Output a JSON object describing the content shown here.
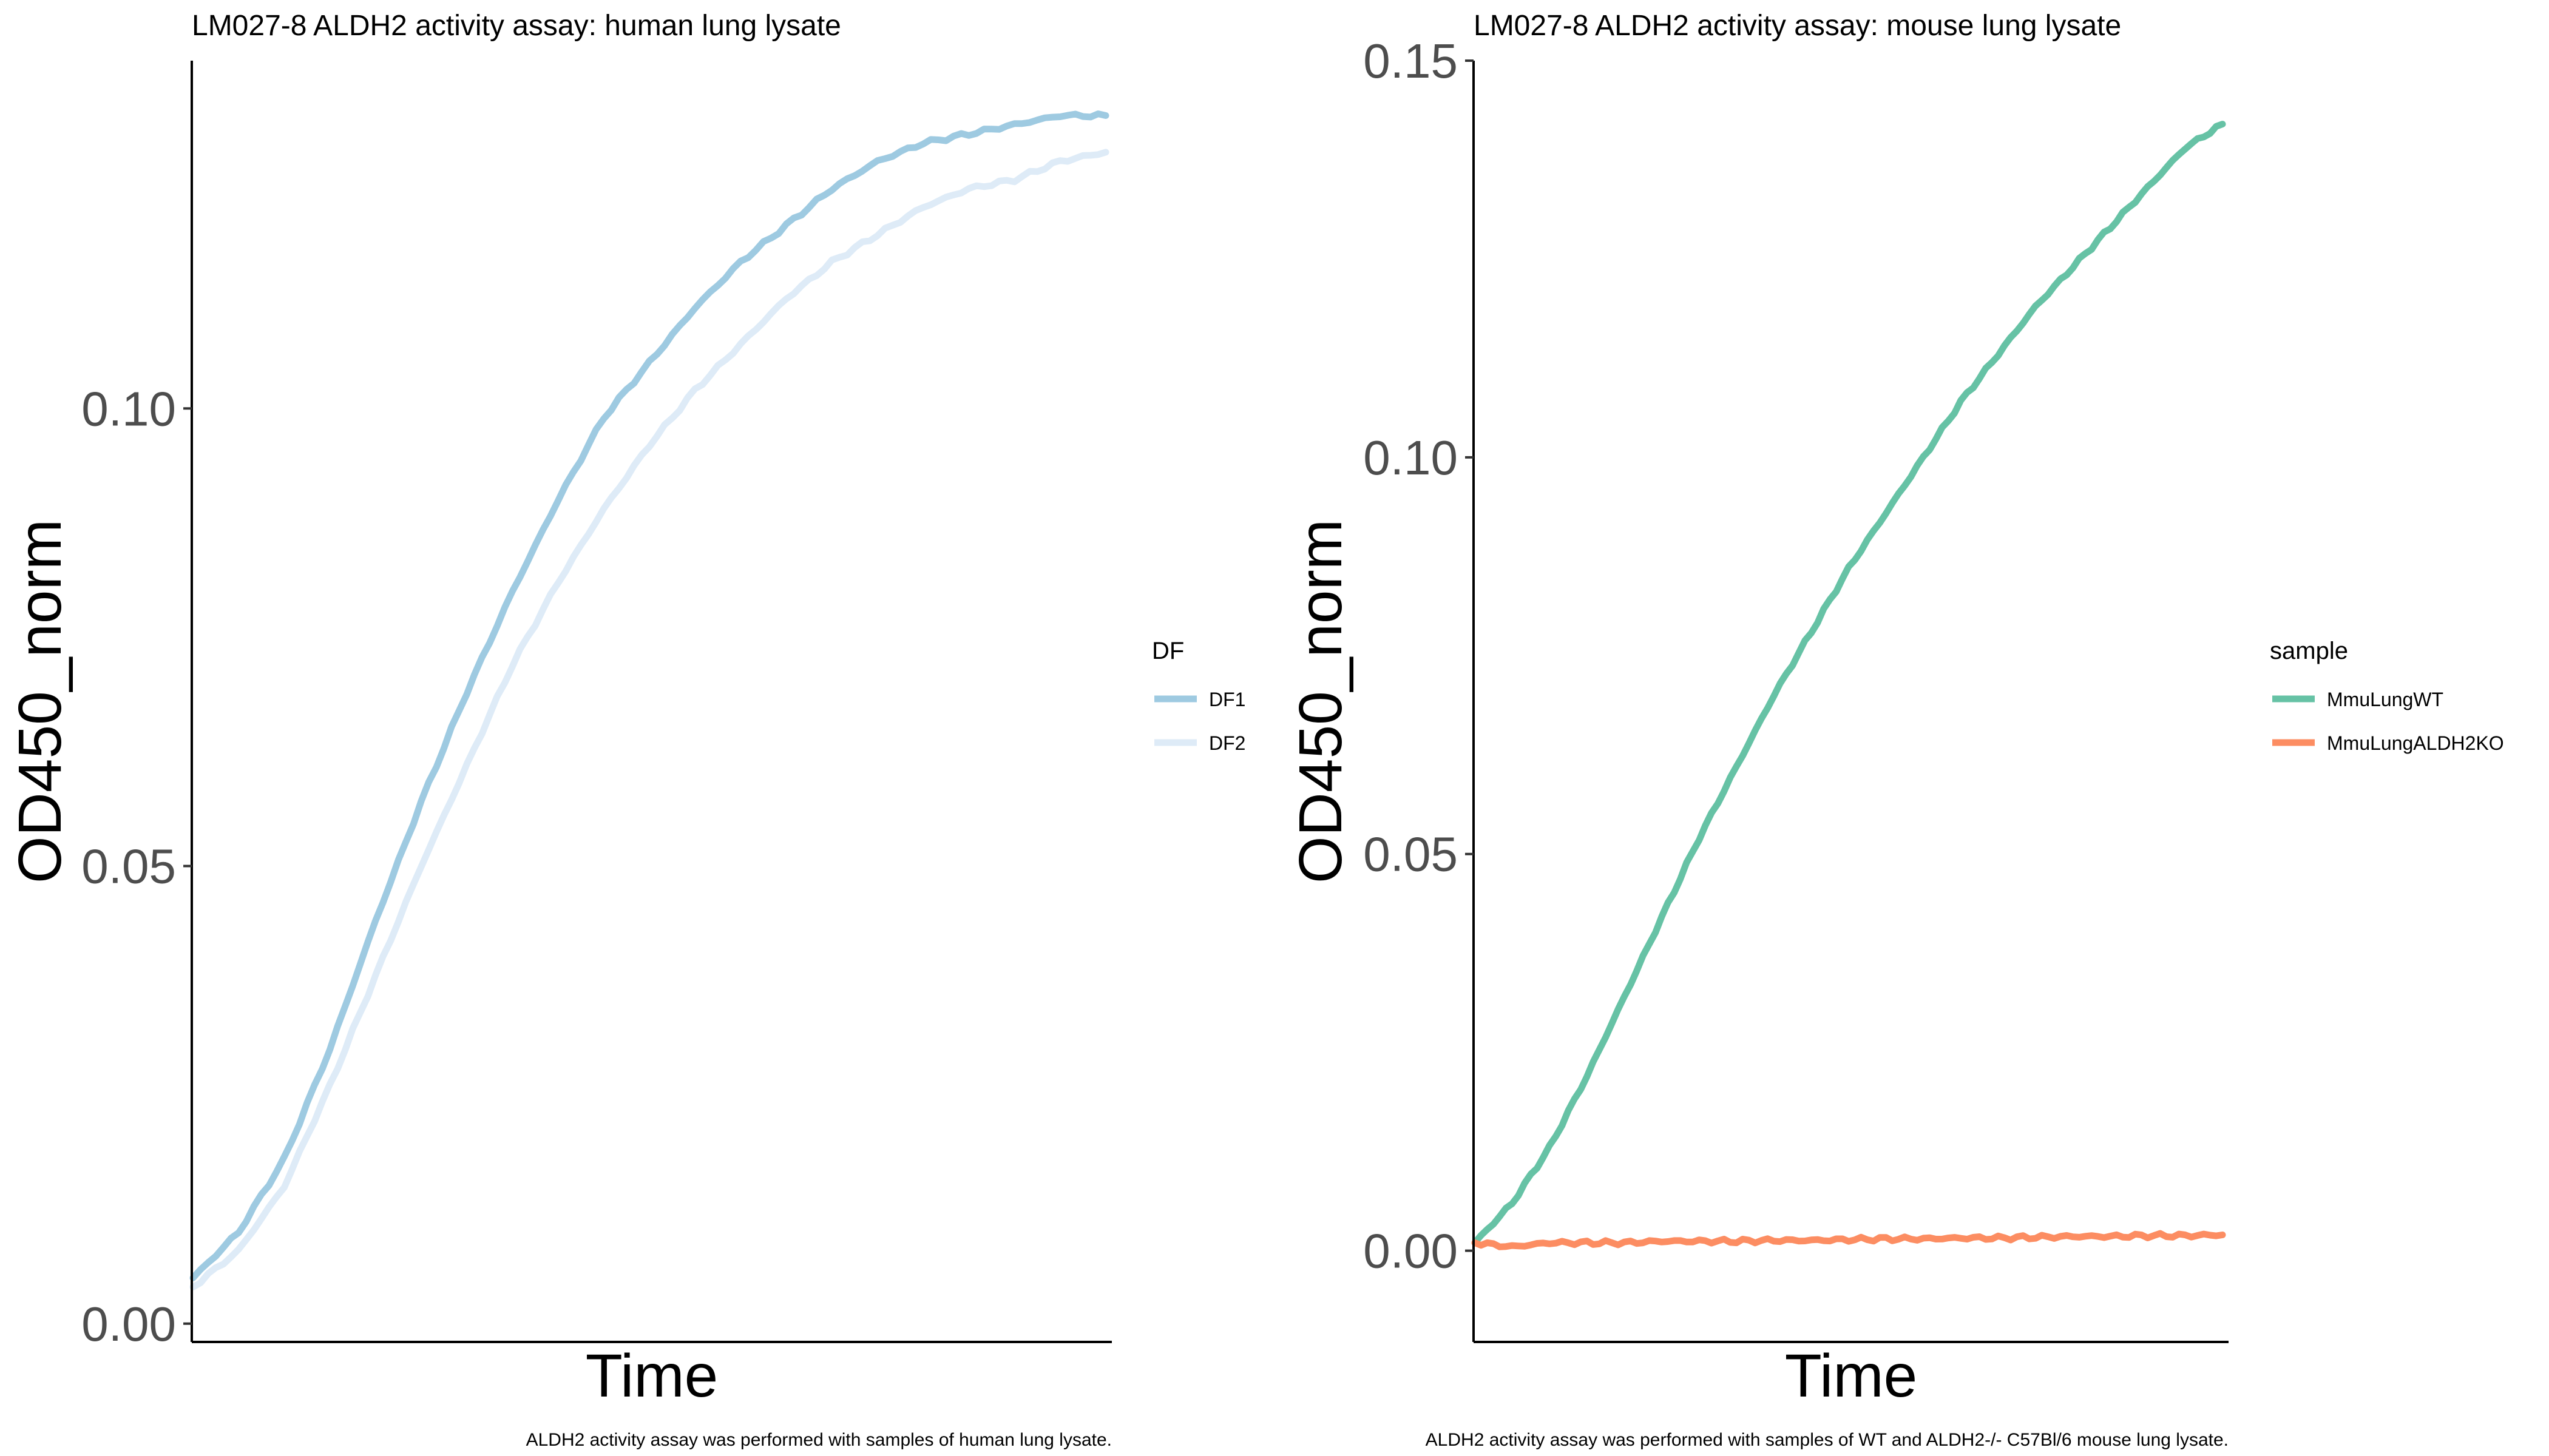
{
  "chart_data": [
    {
      "type": "line",
      "title": "LM027-8 ALDH2 activity assay: human lung lysate",
      "xlabel": "Time",
      "ylabel": "OD450_norm",
      "caption": "ALDH2 activity assay was performed with samples of human lung lysate.",
      "ylim": [
        -0.002,
        0.138
      ],
      "y_ticks": [
        0.0,
        0.05,
        0.1
      ],
      "y_tick_labels": [
        "0.00",
        "0.05",
        "0.10"
      ],
      "x_ticks_shown": false,
      "grid": false,
      "legend": {
        "title": "DF",
        "position": "right"
      },
      "x_range": [
        0,
        100
      ],
      "series": [
        {
          "name": "DF1",
          "color": "#9ECAE1",
          "x": [
            0,
            5,
            10,
            15,
            20,
            25,
            30,
            35,
            40,
            45,
            50,
            55,
            60,
            65,
            70,
            75,
            80,
            85,
            90,
            95,
            100
          ],
          "values": [
            0.005,
            0.01,
            0.018,
            0.03,
            0.044,
            0.057,
            0.069,
            0.08,
            0.09,
            0.099,
            0.105,
            0.111,
            0.116,
            0.12,
            0.124,
            0.127,
            0.129,
            0.13,
            0.131,
            0.132,
            0.132
          ]
        },
        {
          "name": "DF2",
          "color": "#DEEBF7",
          "x": [
            0,
            5,
            10,
            15,
            20,
            25,
            30,
            35,
            40,
            45,
            50,
            55,
            60,
            65,
            70,
            75,
            80,
            85,
            90,
            95,
            100
          ],
          "values": [
            0.004,
            0.008,
            0.015,
            0.026,
            0.038,
            0.05,
            0.061,
            0.072,
            0.081,
            0.089,
            0.096,
            0.102,
            0.107,
            0.112,
            0.116,
            0.119,
            0.122,
            0.124,
            0.125,
            0.127,
            0.128
          ]
        }
      ]
    },
    {
      "type": "line",
      "title": "LM027-8 ALDH2 activity assay: mouse lung lysate",
      "xlabel": "Time",
      "ylabel": "OD450_norm",
      "caption": "ALDH2 activity assay was performed with samples of WT and ALDH2-/- C57Bl/6 mouse lung lysate.",
      "ylim": [
        -0.0115,
        0.15
      ],
      "y_ticks": [
        0.0,
        0.05,
        0.1,
        0.15
      ],
      "y_tick_labels": [
        "0.00",
        "0.05",
        "0.10",
        "0.15"
      ],
      "x_ticks_shown": false,
      "grid": false,
      "legend": {
        "title": "sample",
        "position": "right"
      },
      "x_range": [
        0,
        100
      ],
      "series": [
        {
          "name": "MmuLungWT",
          "color": "#66C2A5",
          "x": [
            0,
            5,
            10,
            15,
            20,
            25,
            30,
            35,
            40,
            45,
            50,
            55,
            60,
            65,
            70,
            75,
            80,
            85,
            90,
            95,
            100
          ],
          "values": [
            0.001,
            0.006,
            0.013,
            0.022,
            0.032,
            0.042,
            0.052,
            0.061,
            0.07,
            0.078,
            0.086,
            0.093,
            0.1,
            0.107,
            0.113,
            0.119,
            0.124,
            0.129,
            0.134,
            0.139,
            0.142
          ]
        },
        {
          "name": "MmuLungALDH2KO",
          "color": "#FC8D62",
          "x": [
            0,
            5,
            10,
            15,
            20,
            25,
            30,
            35,
            40,
            45,
            50,
            55,
            60,
            65,
            70,
            75,
            80,
            85,
            90,
            95,
            100
          ],
          "values": [
            0.001,
            0.0005,
            0.001,
            0.001,
            0.001,
            0.0012,
            0.0012,
            0.0012,
            0.0013,
            0.0013,
            0.0014,
            0.0015,
            0.0015,
            0.0016,
            0.0016,
            0.0017,
            0.0018,
            0.0018,
            0.0019,
            0.0019,
            0.002
          ]
        }
      ]
    }
  ]
}
